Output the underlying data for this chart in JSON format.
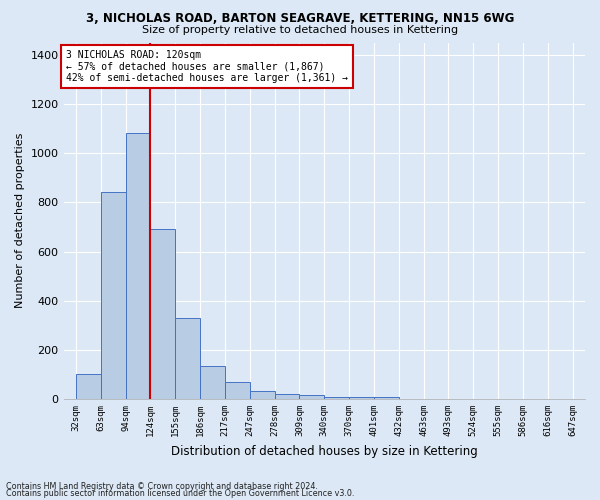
{
  "title_line1": "3, NICHOLAS ROAD, BARTON SEAGRAVE, KETTERING, NN15 6WG",
  "title_line2": "Size of property relative to detached houses in Kettering",
  "xlabel": "Distribution of detached houses by size in Kettering",
  "ylabel": "Number of detached properties",
  "categories": [
    "32sqm",
    "63sqm",
    "94sqm",
    "124sqm",
    "155sqm",
    "186sqm",
    "217sqm",
    "247sqm",
    "278sqm",
    "309sqm",
    "340sqm",
    "370sqm",
    "401sqm",
    "432sqm",
    "463sqm",
    "493sqm",
    "524sqm",
    "555sqm",
    "586sqm",
    "616sqm",
    "647sqm"
  ],
  "values": [
    100,
    843,
    1080,
    690,
    330,
    135,
    70,
    33,
    22,
    15,
    10,
    10,
    8,
    0,
    0,
    0,
    0,
    0,
    0,
    0,
    0
  ],
  "bar_color": "#b8cce4",
  "bar_edge_color": "#4472c4",
  "vline_x_index": 3,
  "vline_color": "#cc0000",
  "annotation_title": "3 NICHOLAS ROAD: 120sqm",
  "annotation_line2": "← 57% of detached houses are smaller (1,867)",
  "annotation_line3": "42% of semi-detached houses are larger (1,361) →",
  "annotation_box_color": "#ffffff",
  "annotation_box_edge": "#cc0000",
  "ylim": [
    0,
    1450
  ],
  "yticks": [
    0,
    200,
    400,
    600,
    800,
    1000,
    1200,
    1400
  ],
  "background_color": "#dce8f5",
  "grid_color": "#ffffff",
  "footnote1": "Contains HM Land Registry data © Crown copyright and database right 2024.",
  "footnote2": "Contains public sector information licensed under the Open Government Licence v3.0."
}
